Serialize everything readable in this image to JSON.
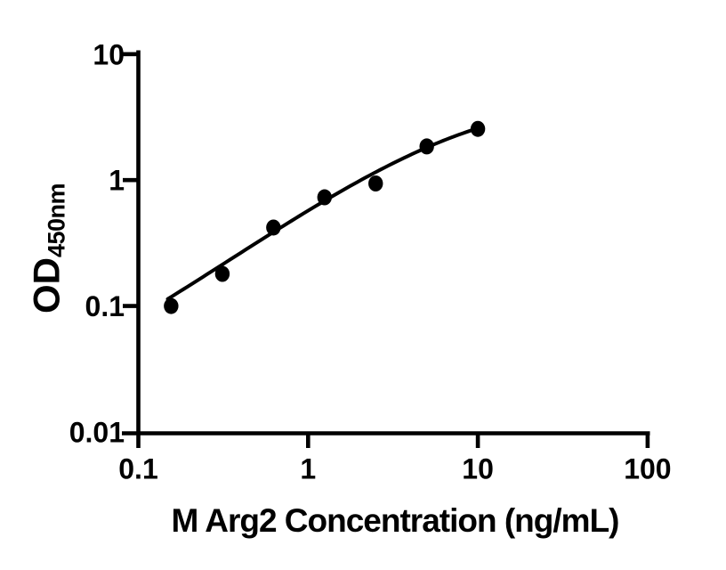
{
  "figure": {
    "background": "#ffffff",
    "ink_color": "#000000"
  },
  "chart_data": {
    "type": "scatter",
    "title": "",
    "xlabel": "M Arg2 Concentration (ng/mL)",
    "ylabel_main": "OD",
    "ylabel_sub": "450nm",
    "x_scale": "log10",
    "y_scale": "log10",
    "xlim": [
      0.1,
      100
    ],
    "ylim": [
      0.01,
      10
    ],
    "grid": false,
    "legend": null,
    "x_ticks": [
      {
        "value": 0.1,
        "label": "0.1"
      },
      {
        "value": 1,
        "label": "1"
      },
      {
        "value": 10,
        "label": "10"
      },
      {
        "value": 100,
        "label": "100"
      }
    ],
    "y_ticks": [
      {
        "value": 0.01,
        "label": "0.01"
      },
      {
        "value": 0.1,
        "label": "0.1"
      },
      {
        "value": 1,
        "label": "1"
      },
      {
        "value": 10,
        "label": "10"
      }
    ],
    "series": [
      {
        "name": "standards",
        "marker": "circle",
        "color": "#000000",
        "x": [
          0.156,
          0.3125,
          0.625,
          1.25,
          2.5,
          5,
          10
        ],
        "y": [
          0.1,
          0.18,
          0.42,
          0.73,
          0.94,
          1.85,
          2.55
        ]
      }
    ],
    "fit_curve": {
      "name": "fit",
      "color": "#000000",
      "x": [
        0.149,
        0.3125,
        0.625,
        1.25,
        2.5,
        5,
        10
      ],
      "y": [
        0.115,
        0.205,
        0.4,
        0.7,
        1.1,
        1.86,
        2.57
      ]
    }
  }
}
